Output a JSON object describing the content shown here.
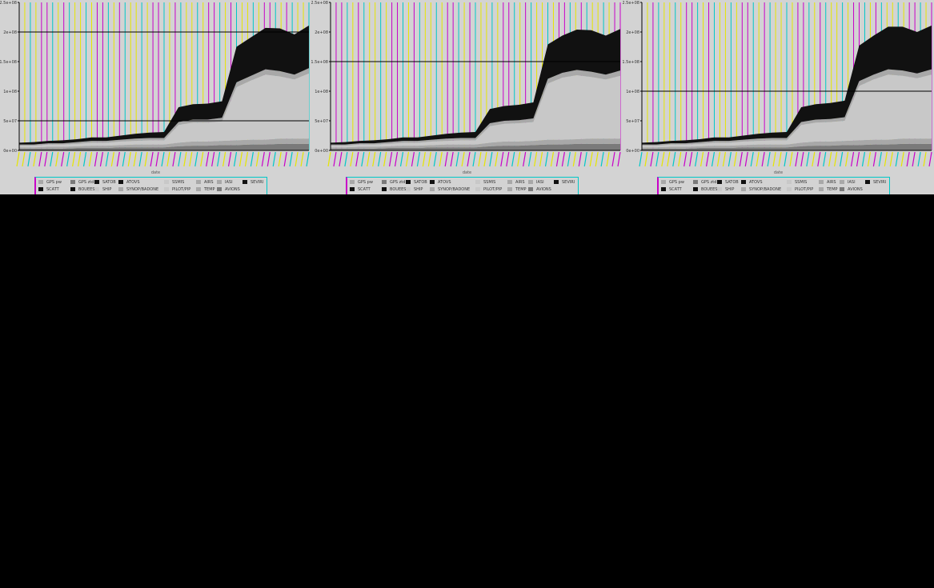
{
  "panels": [
    {
      "xlabel": "date",
      "ylim_top": 250000000.0,
      "hlines": [
        200000000.0,
        50000000.0
      ],
      "ytick_labels": [
        "0e+00",
        "5e+07",
        "1e+08",
        "1.5e+08",
        "2e+08",
        "2.5e+08"
      ],
      "legend": [
        [
          "GPS pw",
          "GPS ztd",
          "SATOB",
          "ATOVS",
          "SSMIS",
          "AIRS",
          "IASI",
          "SEVIRI"
        ],
        [
          "SCATT",
          "BOUEES",
          "SHIP",
          "SYNOP/BADONE",
          "PILOT/PIP",
          "TEMP",
          "AVIONS"
        ]
      ]
    },
    {
      "xlabel": "date",
      "ylim_top": 250000000.0,
      "hlines": [
        150000000.0
      ],
      "ytick_labels": [
        "0e+00",
        "5e+07",
        "1e+08",
        "1.5e+08",
        "2e+08",
        "2.5e+08"
      ],
      "legend": [
        [
          "GPS pw",
          "GPS ztd",
          "SATOB",
          "ATOVS",
          "SSMIS",
          "AIRS",
          "IASI",
          "SEVIRI"
        ],
        [
          "SCATT",
          "BOUEES",
          "SHIP",
          "SYNOP/BADONE",
          "PILOT/PIP",
          "TEMP",
          "AVIONS"
        ]
      ]
    },
    {
      "xlabel": "date",
      "ylim_top": 250000000.0,
      "hlines": [
        100000000.0
      ],
      "ytick_labels": [
        "0e+00",
        "5e+07",
        "1e+08",
        "1.5e+08",
        "2e+08",
        "2.5e+08"
      ],
      "legend": [
        [
          "GPS pw",
          "GPS ztd",
          "SATOB",
          "ATOVS",
          "SSMIS",
          "AIRS",
          "IASI",
          "SEVIRI"
        ],
        [
          "SCATT",
          "BOUEES",
          "SHIP",
          "SYNOP/BADONE",
          "PILOT/PIP",
          "TEMP",
          "AVIONS"
        ]
      ]
    }
  ],
  "colors": {
    "panel_bg": "#d3d3d3",
    "yellow": "#e6e600",
    "cyan": "#00c8c8",
    "magenta": "#c800c8",
    "dark": "#111111",
    "grey": "#a8a8a8",
    "light": "#c8c8c8",
    "mid": "#7a7a7a"
  },
  "chart_data": [
    {
      "type": "area",
      "title": "",
      "xlabel": "date",
      "ylabel": "",
      "ylim": [
        0,
        250000000
      ],
      "stacked": true,
      "x": [
        0,
        5,
        10,
        15,
        20,
        25,
        30,
        35,
        40,
        45,
        50,
        55,
        60,
        65,
        70,
        75,
        80,
        85,
        90,
        95,
        100
      ],
      "series": [
        {
          "values": [
            3000000.0,
            3000000.0,
            3000000.0,
            3000000.0,
            4000000.0,
            4000000.0,
            4000000.0,
            5000000.0,
            5000000.0,
            5000000.0,
            5000000.0,
            7000000.0,
            8000000.0,
            8000000.0,
            9000000.0,
            9000000.0,
            10000000.0,
            10000000.0,
            11000000.0,
            11000000.0,
            11000000.0
          ]
        },
        {
          "values": [
            2000000.0,
            2000000.0,
            3000000.0,
            3000000.0,
            3000000.0,
            4000000.0,
            4000000.0,
            4000000.0,
            5000000.0,
            5000000.0,
            5000000.0,
            6000000.0,
            7000000.0,
            7000000.0,
            7000000.0,
            8000000.0,
            8000000.0,
            8000000.0,
            9000000.0,
            9000000.0,
            9000000.0
          ]
        },
        {
          "values": [
            3000000.0,
            3000000.0,
            4000000.0,
            4000000.0,
            4000000.0,
            5000000.0,
            5000000.0,
            6000000.0,
            6000000.0,
            7000000.0,
            7000000.0,
            30000000.0,
            32000000.0,
            32000000.0,
            33000000.0,
            90000000.0,
            100000000.0,
            110000000.0,
            105000000.0,
            100000000.0,
            110000000.0
          ]
        },
        {
          "values": [
            2000000.0,
            2000000.0,
            2000000.0,
            2000000.0,
            3000000.0,
            3000000.0,
            3000000.0,
            3000000.0,
            4000000.0,
            4000000.0,
            4000000.0,
            5000000.0,
            5000000.0,
            5000000.0,
            6000000.0,
            8000000.0,
            8000000.0,
            9000000.0,
            9000000.0,
            8000000.0,
            9000000.0
          ]
        },
        {
          "values": [
            3000000.0,
            4000000.0,
            4000000.0,
            5000000.0,
            5000000.0,
            6000000.0,
            6000000.0,
            7000000.0,
            8000000.0,
            9000000.0,
            10000000.0,
            25000000.0,
            26000000.0,
            27000000.0,
            28000000.0,
            60000000.0,
            65000000.0,
            70000000.0,
            72000000.0,
            68000000.0,
            72000000.0
          ]
        }
      ]
    },
    {
      "type": "area",
      "title": "",
      "xlabel": "date",
      "ylabel": "",
      "ylim": [
        0,
        250000000
      ],
      "stacked": true,
      "x": [
        0,
        5,
        10,
        15,
        20,
        25,
        30,
        35,
        40,
        45,
        50,
        55,
        60,
        65,
        70,
        75,
        80,
        85,
        90,
        95,
        100
      ],
      "series": [
        {
          "values": [
            3000000.0,
            3000000.0,
            3000000.0,
            3000000.0,
            4000000.0,
            4000000.0,
            4000000.0,
            5000000.0,
            5000000.0,
            5000000.0,
            5000000.0,
            7000000.0,
            8000000.0,
            8000000.0,
            9000000.0,
            10000000.0,
            10000000.0,
            11000000.0,
            11000000.0,
            11000000.0,
            11000000.0
          ]
        },
        {
          "values": [
            2000000.0,
            2000000.0,
            3000000.0,
            3000000.0,
            3000000.0,
            4000000.0,
            4000000.0,
            4000000.0,
            5000000.0,
            5000000.0,
            5000000.0,
            6000000.0,
            7000000.0,
            7000000.0,
            7000000.0,
            8000000.0,
            8000000.0,
            8000000.0,
            9000000.0,
            9000000.0,
            9000000.0
          ]
        },
        {
          "values": [
            3000000.0,
            3000000.0,
            4000000.0,
            4000000.0,
            4000000.0,
            5000000.0,
            5000000.0,
            6000000.0,
            6000000.0,
            7000000.0,
            7000000.0,
            28000000.0,
            30000000.0,
            31000000.0,
            32000000.0,
            95000000.0,
            105000000.0,
            108000000.0,
            104000000.0,
            100000000.0,
            106000000.0
          ]
        },
        {
          "values": [
            2000000.0,
            2000000.0,
            2000000.0,
            2000000.0,
            3000000.0,
            3000000.0,
            3000000.0,
            3000000.0,
            4000000.0,
            4000000.0,
            4000000.0,
            5000000.0,
            5000000.0,
            5000000.0,
            6000000.0,
            8000000.0,
            8000000.0,
            9000000.0,
            9000000.0,
            8000000.0,
            9000000.0
          ]
        },
        {
          "values": [
            3000000.0,
            4000000.0,
            4000000.0,
            5000000.0,
            5000000.0,
            6000000.0,
            6000000.0,
            7000000.0,
            8000000.0,
            9000000.0,
            10000000.0,
            24000000.0,
            25000000.0,
            26000000.0,
            27000000.0,
            58000000.0,
            63000000.0,
            68000000.0,
            70000000.0,
            66000000.0,
            70000000.0
          ]
        }
      ]
    },
    {
      "type": "area",
      "title": "",
      "xlabel": "date",
      "ylabel": "",
      "ylim": [
        0,
        250000000
      ],
      "stacked": true,
      "x": [
        0,
        5,
        10,
        15,
        20,
        25,
        30,
        35,
        40,
        45,
        50,
        55,
        60,
        65,
        70,
        75,
        80,
        85,
        90,
        95,
        100
      ],
      "series": [
        {
          "values": [
            3000000.0,
            3000000.0,
            3000000.0,
            3000000.0,
            4000000.0,
            4000000.0,
            4000000.0,
            5000000.0,
            5000000.0,
            5000000.0,
            5000000.0,
            7000000.0,
            8000000.0,
            8000000.0,
            9000000.0,
            9000000.0,
            10000000.0,
            10000000.0,
            11000000.0,
            11000000.0,
            11000000.0
          ]
        },
        {
          "values": [
            2000000.0,
            2000000.0,
            3000000.0,
            3000000.0,
            3000000.0,
            4000000.0,
            4000000.0,
            4000000.0,
            5000000.0,
            5000000.0,
            5000000.0,
            6000000.0,
            7000000.0,
            7000000.0,
            7000000.0,
            8000000.0,
            8000000.0,
            8000000.0,
            9000000.0,
            9000000.0,
            9000000.0
          ]
        },
        {
          "values": [
            3000000.0,
            3000000.0,
            4000000.0,
            4000000.0,
            4000000.0,
            5000000.0,
            5000000.0,
            6000000.0,
            6000000.0,
            7000000.0,
            7000000.0,
            30000000.0,
            32000000.0,
            33000000.0,
            34000000.0,
            92000000.0,
            102000000.0,
            110000000.0,
            106000000.0,
            102000000.0,
            108000000.0
          ]
        },
        {
          "values": [
            2000000.0,
            2000000.0,
            2000000.0,
            2000000.0,
            3000000.0,
            3000000.0,
            3000000.0,
            3000000.0,
            4000000.0,
            4000000.0,
            4000000.0,
            5000000.0,
            5000000.0,
            5000000.0,
            6000000.0,
            8000000.0,
            8000000.0,
            9000000.0,
            9000000.0,
            8000000.0,
            9000000.0
          ]
        },
        {
          "values": [
            3000000.0,
            4000000.0,
            4000000.0,
            5000000.0,
            5000000.0,
            6000000.0,
            6000000.0,
            7000000.0,
            8000000.0,
            9000000.0,
            10000000.0,
            25000000.0,
            26000000.0,
            27000000.0,
            28000000.0,
            60000000.0,
            66000000.0,
            72000000.0,
            74000000.0,
            70000000.0,
            74000000.0
          ]
        }
      ]
    }
  ]
}
